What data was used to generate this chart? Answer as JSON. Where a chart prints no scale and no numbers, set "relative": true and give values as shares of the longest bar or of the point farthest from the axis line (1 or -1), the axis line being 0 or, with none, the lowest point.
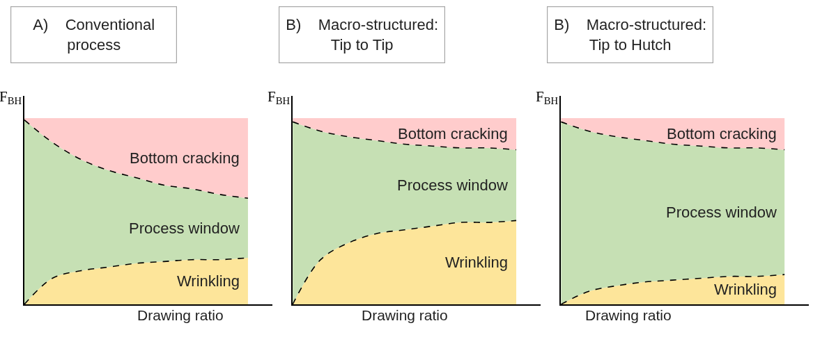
{
  "chart_data": [
    {
      "type": "area",
      "title": "A)    Conventional\nprocess",
      "xlabel": "Drawing ratio",
      "ylabel": "F$_{BH}$",
      "relative": true,
      "stacked": true,
      "categories": [
        null,
        null,
        null,
        null,
        null,
        null,
        null,
        null,
        null
      ],
      "series": [
        {
          "name": "Wrinkling",
          "color": "#fde59a",
          "line_style": "dashed",
          "values": [
            0,
            0.14,
            0.18,
            0.2,
            0.22,
            0.23,
            0.24,
            0.24,
            0.25
          ]
        },
        {
          "name": "Process window",
          "color": "#c6e0b4",
          "line_style": "dashed",
          "values": [
            0.99,
            0.73,
            0.6,
            0.52,
            0.46,
            0.41,
            0.38,
            0.35,
            0.32
          ]
        },
        {
          "name": "Bottom cracking",
          "color": "#ffcccc",
          "values": [
            0.01,
            0.13,
            0.22,
            0.28,
            0.32,
            0.36,
            0.38,
            0.41,
            0.43
          ]
        }
      ]
    },
    {
      "type": "area",
      "title": "B)    Macro-structured:\nTip to Tip",
      "xlabel": "Drawing ratio",
      "ylabel": "F$_{BH}$",
      "relative": true,
      "stacked": true,
      "categories": [
        null,
        null,
        null,
        null,
        null,
        null,
        null,
        null,
        null
      ],
      "series": [
        {
          "name": "Wrinkling",
          "color": "#fde59a",
          "line_style": "dashed",
          "values": [
            0,
            0.24,
            0.33,
            0.38,
            0.4,
            0.42,
            0.44,
            0.44,
            0.45
          ]
        },
        {
          "name": "Process window",
          "color": "#c6e0b4",
          "line_style": "dashed",
          "values": [
            0.98,
            0.69,
            0.57,
            0.5,
            0.46,
            0.43,
            0.4,
            0.4,
            0.38
          ]
        },
        {
          "name": "Bottom cracking",
          "color": "#ffcccc",
          "values": [
            0.02,
            0.07,
            0.1,
            0.12,
            0.14,
            0.15,
            0.16,
            0.16,
            0.17
          ]
        }
      ]
    },
    {
      "type": "area",
      "title": "B)    Macro-structured:\nTip to Hutch",
      "xlabel": "Drawing ratio",
      "ylabel": "F$_{BH}$",
      "relative": true,
      "stacked": true,
      "categories": [
        null,
        null,
        null,
        null,
        null,
        null,
        null,
        null,
        null
      ],
      "series": [
        {
          "name": "Wrinkling",
          "color": "#fde59a",
          "line_style": "dashed",
          "values": [
            0,
            0.07,
            0.1,
            0.12,
            0.13,
            0.14,
            0.15,
            0.15,
            0.16
          ]
        },
        {
          "name": "Process window",
          "color": "#c6e0b4",
          "line_style": "dashed",
          "values": [
            0.98,
            0.86,
            0.8,
            0.76,
            0.73,
            0.71,
            0.69,
            0.69,
            0.67
          ]
        },
        {
          "name": "Bottom cracking",
          "color": "#ffcccc",
          "values": [
            0.02,
            0.07,
            0.1,
            0.12,
            0.14,
            0.15,
            0.16,
            0.16,
            0.17
          ]
        }
      ]
    }
  ]
}
